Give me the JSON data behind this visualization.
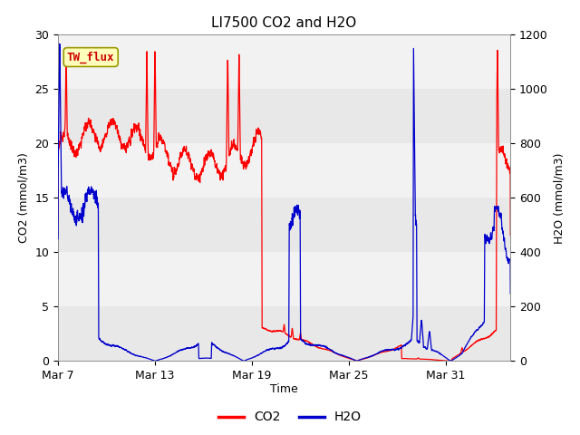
{
  "title": "LI7500 CO2 and H2O",
  "xlabel": "Time",
  "ylabel_left": "CO2 (mmol/m3)",
  "ylabel_right": "H2O (mmol/m3)",
  "co2_ylim": [
    0,
    30
  ],
  "h2o_ylim": [
    0,
    1200
  ],
  "xtick_labels": [
    "Mar 7",
    "Mar 13",
    "Mar 19",
    "Mar 25",
    "Mar 31"
  ],
  "xtick_positions": [
    0,
    6,
    12,
    18,
    24
  ],
  "legend_labels": [
    "CO2",
    "H2O"
  ],
  "co2_color": "#FF0000",
  "h2o_color": "#0000CC",
  "background_color": "#FFFFFF",
  "plot_bg_outer": "#D8D8D8",
  "plot_bg_band1": "#E8E8E8",
  "plot_bg_band2": "#F2F2F2",
  "annotation_text": "TW_flux",
  "annotation_bg": "#FFFFBB",
  "annotation_border": "#999900",
  "title_fontsize": 11,
  "label_fontsize": 9,
  "tick_fontsize": 9
}
